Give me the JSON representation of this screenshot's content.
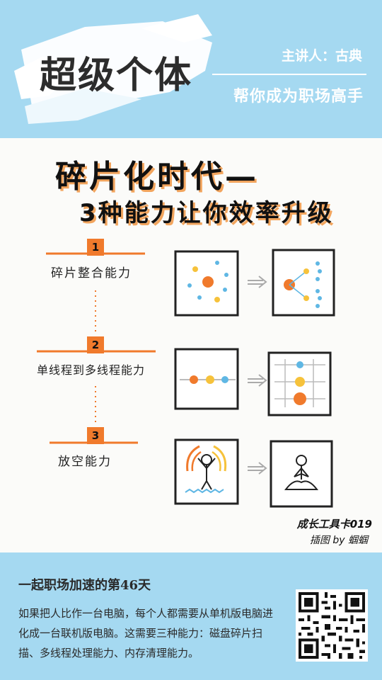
{
  "header": {
    "title": "超级个体",
    "speaker": "主讲人：古典",
    "slogan": "帮你成为职场高手"
  },
  "card": {
    "title_line1": "碎片化时代—",
    "title_line2": "3种能力让你效率升级",
    "abilities": [
      {
        "number": "1",
        "label": "碎片整合能力"
      },
      {
        "number": "2",
        "label": "单线程到多线程能力"
      },
      {
        "number": "3",
        "label": "放空能力"
      }
    ],
    "signature_line1": "成长工具卡019",
    "signature_line2": "插图 by 蝈蝈",
    "colors": {
      "orange": "#f07a2c",
      "blue": "#5fb7e4",
      "yellow": "#f6c23b"
    }
  },
  "footer": {
    "day_title": "一起职场加速的第46天",
    "description": "如果把人比作一台电脑，每个人都需要从单机版电脑进化成一台联机版电脑。这需要三种能力：磁盘碎片扫描、多线程处理能力、内存清理能力。",
    "qr_icon": "qr-code-icon"
  }
}
